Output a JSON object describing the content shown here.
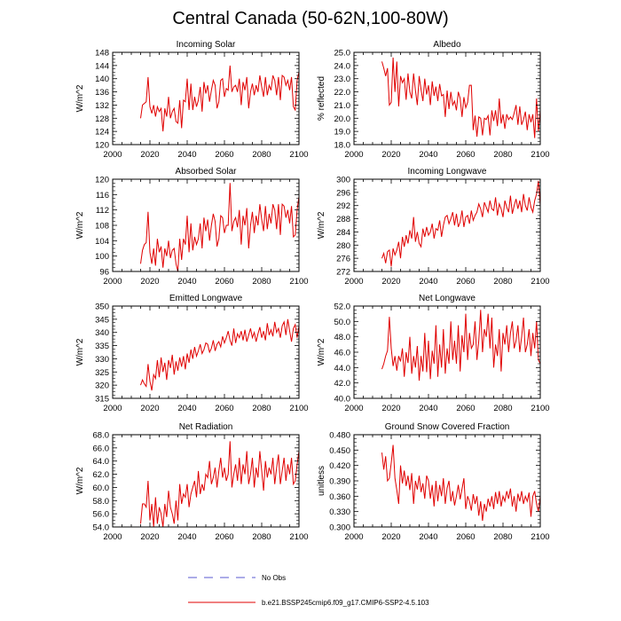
{
  "title": "Central Canada (50-62N,100-80W)",
  "legend": {
    "obs_label": "No Obs",
    "obs_color": "#5a5ad0",
    "model_label": "b.e21.BSSP245cmip6.f09_g17.CMIP6-SSP2-4.5.103",
    "model_color": "#e00000"
  },
  "chart_data": [
    {
      "type": "line",
      "title": "Incoming Solar",
      "ylabel": "W/m^2",
      "xlim": [
        2000,
        2100
      ],
      "xticks": [
        "2000",
        "2020",
        "2040",
        "2060",
        "2080",
        "2100"
      ],
      "ylim": [
        120,
        148
      ],
      "yticks": [
        "120",
        "124",
        "128",
        "132",
        "136",
        "140",
        "144",
        "148"
      ],
      "start_year": 2015,
      "series": [
        {
          "name": "b.e21.BSSP245cmip6.f09_g17.CMIP6-SSP2-4.5.103",
          "values": [
            128.0,
            132.0,
            132.5,
            133.0,
            140.5,
            131.5,
            129.5,
            132.0,
            128.5,
            131.5,
            130.0,
            131.0,
            124.0,
            131.0,
            128.5,
            134.5,
            128.0,
            130.0,
            131.0,
            127.0,
            126.5,
            133.5,
            125.0,
            133.5,
            133.0,
            140.0,
            130.5,
            138.5,
            130.5,
            134.5,
            131.5,
            133.5,
            137.5,
            130.0,
            139.0,
            135.5,
            138.0,
            133.0,
            136.5,
            139.5,
            138.0,
            131.0,
            133.0,
            139.5,
            140.0,
            134.5,
            137.0,
            136.5,
            144.0,
            136.0,
            137.5,
            138.0,
            136.0,
            140.0,
            132.0,
            139.0,
            136.5,
            140.5,
            131.0,
            136.0,
            138.5,
            135.0,
            138.0,
            136.0,
            141.0,
            137.5,
            134.5,
            140.5,
            135.0,
            138.0,
            136.5,
            141.0,
            139.5,
            135.0,
            140.5,
            133.5,
            141.0,
            140.5,
            138.0,
            139.5,
            136.5,
            140.5,
            131.5,
            130.5,
            139.5,
            142.0,
            136.5
          ]
        }
      ]
    },
    {
      "type": "line",
      "title": "Albedo",
      "ylabel": "% reflected",
      "xlim": [
        2000,
        2100
      ],
      "xticks": [
        "2000",
        "2020",
        "2040",
        "2060",
        "2080",
        "2100"
      ],
      "ylim": [
        18.0,
        25.0
      ],
      "yticks": [
        "18.0",
        "19.0",
        "20.0",
        "21.0",
        "22.0",
        "23.0",
        "24.0",
        "25.0"
      ],
      "start_year": 2015,
      "series": [
        {
          "name": "b.e21.BSSP245cmip6.f09_g17.CMIP6-SSP2-4.5.103",
          "values": [
            24.3,
            23.8,
            23.2,
            23.8,
            21.0,
            21.2,
            24.6,
            22.0,
            24.3,
            20.9,
            23.2,
            22.7,
            23.0,
            21.4,
            23.4,
            22.0,
            21.5,
            23.4,
            22.1,
            21.0,
            23.2,
            22.2,
            21.3,
            23.0,
            21.8,
            22.5,
            21.0,
            22.8,
            21.7,
            22.4,
            21.3,
            22.6,
            21.7,
            21.8,
            20.1,
            22.1,
            20.7,
            22.0,
            21.0,
            21.3,
            20.6,
            22.0,
            21.5,
            20.1,
            21.6,
            20.8,
            21.2,
            22.5,
            22.5,
            19.1,
            20.2,
            18.6,
            20.1,
            20.0,
            18.7,
            20.0,
            19.9,
            20.2,
            18.7,
            20.6,
            19.8,
            20.6,
            19.4,
            21.5,
            19.6,
            20.3,
            19.2,
            20.3,
            19.9,
            20.1,
            19.9,
            20.4,
            21.0,
            19.5,
            20.9,
            19.5,
            19.9,
            20.5,
            19.1,
            20.3,
            19.7,
            20.3,
            18.5,
            21.5,
            19.0,
            20.6,
            19.6
          ]
        }
      ]
    },
    {
      "type": "line",
      "title": "Absorbed Solar",
      "ylabel": "W/m^2",
      "xlim": [
        2000,
        2100
      ],
      "xticks": [
        "2000",
        "2020",
        "2040",
        "2060",
        "2080",
        "2100"
      ],
      "ylim": [
        96,
        120
      ],
      "yticks": [
        "96",
        "100",
        "104",
        "108",
        "112",
        "116",
        "120"
      ],
      "start_year": 2015,
      "series": [
        {
          "name": "b.e21.BSSP245cmip6.f09_g17.CMIP6-SSP2-4.5.103",
          "values": [
            98.0,
            101.5,
            103.0,
            103.5,
            111.5,
            101.0,
            98.0,
            102.0,
            97.5,
            104.5,
            101.0,
            102.5,
            97.0,
            102.0,
            100.0,
            104.0,
            99.5,
            101.5,
            102.0,
            98.0,
            96.0,
            104.5,
            99.0,
            104.5,
            103.0,
            110.5,
            101.0,
            108.5,
            101.5,
            105.0,
            103.0,
            104.5,
            108.5,
            102.0,
            110.0,
            106.5,
            109.5,
            104.0,
            108.0,
            111.0,
            109.0,
            102.5,
            104.5,
            110.5,
            110.0,
            106.0,
            108.0,
            108.0,
            119.0,
            106.5,
            109.0,
            110.0,
            107.5,
            112.0,
            103.0,
            110.5,
            108.0,
            112.5,
            102.0,
            108.0,
            111.5,
            106.0,
            110.5,
            108.0,
            113.5,
            109.5,
            106.5,
            113.0,
            107.0,
            111.0,
            108.5,
            113.5,
            112.0,
            107.0,
            113.5,
            105.5,
            113.5,
            113.0,
            110.0,
            112.0,
            108.5,
            113.0,
            105.0,
            105.5,
            112.0,
            115.5,
            107.0
          ]
        }
      ]
    },
    {
      "type": "line",
      "title": "Incoming Longwave",
      "ylabel": "W/m^2",
      "xlim": [
        2000,
        2100
      ],
      "xticks": [
        "2000",
        "2020",
        "2040",
        "2060",
        "2080",
        "2100"
      ],
      "ylim": [
        272,
        300
      ],
      "yticks": [
        "272",
        "276",
        "280",
        "284",
        "288",
        "292",
        "296",
        "300"
      ],
      "start_year": 2015,
      "series": [
        {
          "name": "b.e21.BSSP245cmip6.f09_g17.CMIP6-SSP2-4.5.103",
          "values": [
            276.0,
            277.5,
            274.5,
            278.0,
            278.5,
            273.5,
            279.0,
            277.0,
            278.5,
            281.0,
            276.0,
            282.5,
            279.5,
            283.0,
            280.5,
            284.5,
            282.0,
            288.5,
            281.0,
            284.0,
            280.5,
            279.5,
            285.0,
            282.5,
            285.5,
            283.0,
            284.0,
            286.5,
            282.0,
            285.0,
            284.5,
            287.5,
            282.5,
            286.0,
            288.5,
            289.0,
            286.5,
            288.0,
            290.0,
            286.0,
            289.5,
            285.5,
            287.0,
            290.5,
            285.5,
            288.5,
            289.0,
            286.5,
            290.5,
            287.5,
            289.0,
            290.0,
            292.5,
            291.0,
            288.5,
            293.0,
            291.5,
            290.0,
            293.5,
            291.0,
            290.5,
            294.5,
            289.0,
            292.5,
            291.0,
            288.5,
            293.5,
            291.5,
            290.0,
            295.0,
            289.5,
            292.0,
            294.0,
            291.0,
            293.5,
            290.0,
            295.5,
            292.0,
            290.5,
            294.5,
            291.5,
            290.0,
            293.5,
            295.5,
            299.5,
            292.0,
            293.5,
            290.0
          ]
        }
      ]
    },
    {
      "type": "line",
      "title": "Emitted Longwave",
      "ylabel": "W/m^2",
      "xlim": [
        2000,
        2100
      ],
      "xticks": [
        "2000",
        "2020",
        "2040",
        "2060",
        "2080",
        "2100"
      ],
      "ylim": [
        315,
        350
      ],
      "yticks": [
        "315",
        "320",
        "325",
        "330",
        "335",
        "340",
        "345",
        "350"
      ],
      "start_year": 2015,
      "series": [
        {
          "name": "b.e21.BSSP245cmip6.f09_g17.CMIP6-SSP2-4.5.103",
          "values": [
            320.0,
            322.0,
            320.5,
            319.5,
            328.0,
            321.5,
            318.0,
            324.0,
            322.5,
            329.5,
            323.0,
            330.5,
            325.0,
            328.5,
            322.0,
            329.5,
            326.5,
            331.5,
            324.0,
            329.0,
            325.5,
            330.5,
            327.0,
            331.0,
            326.0,
            332.0,
            328.5,
            333.5,
            330.0,
            334.5,
            331.0,
            333.0,
            335.5,
            332.0,
            333.5,
            336.0,
            335.5,
            332.5,
            334.0,
            337.0,
            333.0,
            335.5,
            336.5,
            334.5,
            338.5,
            336.0,
            338.0,
            340.5,
            337.0,
            335.0,
            341.5,
            336.0,
            339.5,
            338.0,
            340.5,
            337.0,
            341.0,
            336.5,
            339.0,
            341.5,
            338.0,
            340.0,
            336.5,
            339.5,
            342.0,
            338.0,
            340.5,
            337.0,
            343.5,
            339.0,
            341.0,
            338.5,
            344.0,
            340.0,
            341.5,
            338.0,
            342.5,
            344.0,
            339.0,
            345.0,
            340.5,
            336.5,
            341.5,
            343.0,
            338.0,
            342.5,
            338.5
          ]
        }
      ]
    },
    {
      "type": "line",
      "title": "Net Longwave",
      "ylabel": "W/m^2",
      "xlim": [
        2000,
        2100
      ],
      "xticks": [
        "2000",
        "2020",
        "2040",
        "2060",
        "2080",
        "2100"
      ],
      "ylim": [
        40.0,
        52.0
      ],
      "yticks": [
        "40.0",
        "42.0",
        "44.0",
        "46.0",
        "48.0",
        "50.0",
        "52.0"
      ],
      "start_year": 2015,
      "series": [
        {
          "name": "b.e21.BSSP245cmip6.f09_g17.CMIP6-SSP2-4.5.103",
          "values": [
            43.8,
            44.5,
            45.5,
            46.2,
            50.6,
            46.5,
            44.2,
            45.5,
            43.6,
            45.5,
            44.8,
            46.5,
            42.8,
            46.0,
            44.6,
            48.0,
            43.2,
            45.5,
            44.0,
            46.8,
            42.3,
            45.5,
            43.5,
            48.5,
            43.4,
            47.5,
            42.5,
            46.2,
            44.5,
            49.5,
            42.8,
            47.0,
            44.0,
            49.0,
            43.2,
            46.5,
            44.5,
            50.0,
            45.0,
            47.5,
            44.5,
            49.5,
            43.5,
            48.2,
            46.0,
            51.0,
            45.0,
            48.5,
            46.5,
            47.0,
            50.0,
            45.0,
            47.5,
            51.5,
            46.0,
            49.0,
            48.0,
            51.0,
            46.5,
            50.5,
            44.0,
            47.0,
            45.5,
            49.0,
            43.5,
            48.5,
            47.0,
            49.5,
            46.0,
            48.5,
            50.0,
            46.5,
            47.5,
            49.5,
            46.0,
            48.0,
            50.5,
            46.0,
            47.0,
            49.0,
            45.5,
            48.5,
            46.5,
            50.0,
            45.0,
            44.5,
            50.0,
            46.5
          ]
        }
      ]
    },
    {
      "type": "line",
      "title": "Net Radiation",
      "ylabel": "W/m^2",
      "xlim": [
        2000,
        2100
      ],
      "xticks": [
        "2000",
        "2020",
        "2040",
        "2060",
        "2080",
        "2100"
      ],
      "ylim": [
        54.0,
        68.0
      ],
      "yticks": [
        "54.0",
        "56.0",
        "58.0",
        "60.0",
        "62.0",
        "64.0",
        "66.0",
        "68.0"
      ],
      "start_year": 2015,
      "series": [
        {
          "name": "b.e21.BSSP245cmip6.f09_g17.CMIP6-SSP2-4.5.103",
          "values": [
            54.5,
            57.5,
            57.5,
            57.0,
            61.0,
            55.0,
            57.5,
            54.0,
            58.5,
            54.5,
            57.0,
            56.0,
            54.0,
            57.5,
            55.5,
            59.5,
            57.0,
            56.0,
            54.5,
            58.0,
            55.0,
            60.5,
            57.5,
            59.0,
            58.5,
            60.5,
            57.0,
            59.0,
            60.0,
            61.0,
            58.5,
            62.5,
            59.0,
            60.5,
            59.5,
            62.0,
            61.5,
            64.0,
            60.5,
            61.5,
            63.0,
            60.0,
            62.5,
            64.5,
            61.5,
            63.0,
            61.0,
            62.0,
            67.0,
            60.0,
            62.0,
            63.5,
            61.0,
            64.5,
            60.5,
            63.5,
            62.0,
            65.5,
            60.5,
            62.0,
            64.5,
            60.0,
            63.0,
            61.5,
            65.5,
            62.5,
            59.5,
            64.0,
            61.5,
            63.0,
            62.0,
            64.5,
            60.5,
            63.0,
            65.0,
            60.5,
            62.5,
            64.5,
            61.0,
            63.5,
            62.0,
            64.5,
            60.5,
            61.0,
            63.5,
            65.5,
            60.0
          ]
        }
      ]
    },
    {
      "type": "line",
      "title": "Ground Snow Covered Fraction",
      "ylabel": "unitless",
      "xlim": [
        2000,
        2100
      ],
      "xticks": [
        "2000",
        "2020",
        "2040",
        "2060",
        "2080",
        "2100"
      ],
      "ylim": [
        0.3,
        0.48
      ],
      "yticks": [
        "0.300",
        "0.330",
        "0.360",
        "0.390",
        "0.420",
        "0.450",
        "0.480"
      ],
      "start_year": 2015,
      "series": [
        {
          "name": "b.e21.BSSP245cmip6.f09_g17.CMIP6-SSP2-4.5.103",
          "values": [
            0.445,
            0.412,
            0.438,
            0.39,
            0.395,
            0.425,
            0.46,
            0.395,
            0.372,
            0.345,
            0.42,
            0.385,
            0.41,
            0.38,
            0.4,
            0.372,
            0.405,
            0.345,
            0.39,
            0.373,
            0.4,
            0.368,
            0.385,
            0.355,
            0.4,
            0.39,
            0.355,
            0.382,
            0.34,
            0.39,
            0.35,
            0.382,
            0.36,
            0.395,
            0.345,
            0.376,
            0.39,
            0.35,
            0.37,
            0.342,
            0.36,
            0.382,
            0.354,
            0.374,
            0.395,
            0.335,
            0.36,
            0.35,
            0.332,
            0.364,
            0.345,
            0.36,
            0.322,
            0.35,
            0.312,
            0.345,
            0.33,
            0.355,
            0.34,
            0.36,
            0.335,
            0.368,
            0.345,
            0.37,
            0.34,
            0.36,
            0.35,
            0.37,
            0.355,
            0.375,
            0.34,
            0.36,
            0.33,
            0.365,
            0.35,
            0.37,
            0.345,
            0.36,
            0.35,
            0.367,
            0.32,
            0.36,
            0.37,
            0.345,
            0.33,
            0.36,
            0.35,
            0.39
          ]
        }
      ]
    }
  ]
}
